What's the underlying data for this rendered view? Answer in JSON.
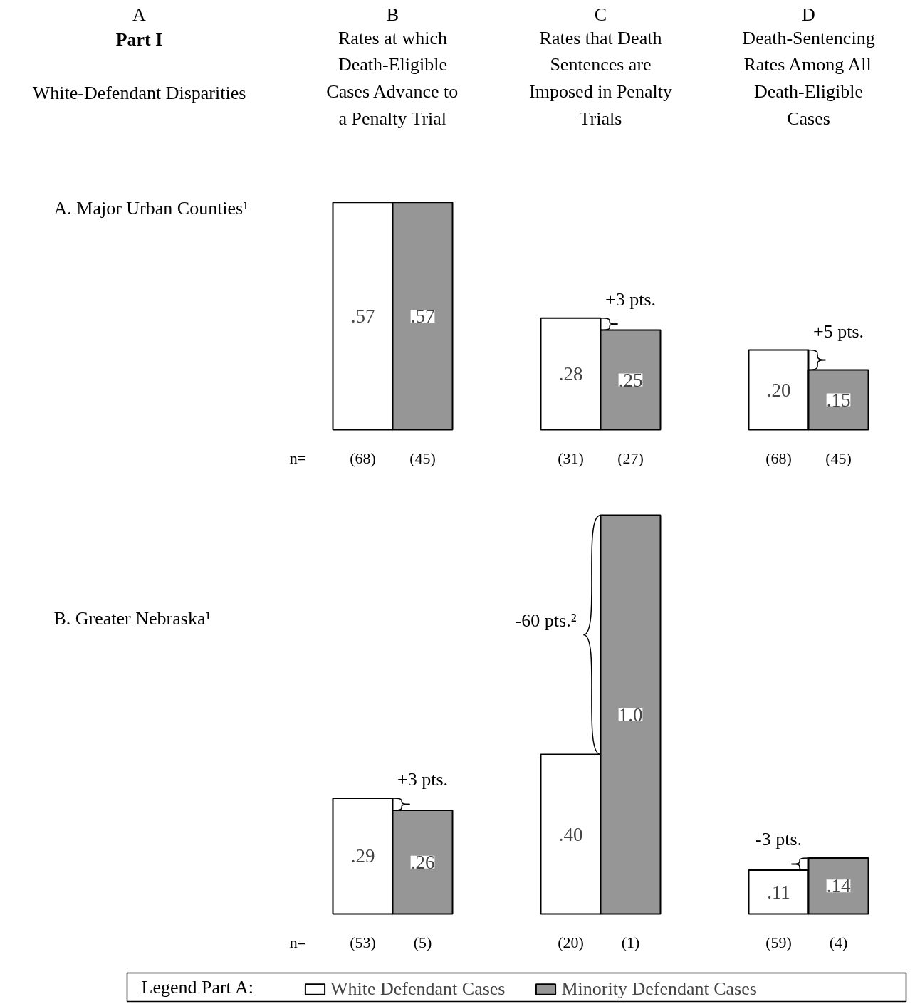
{
  "chart_data": [
    {
      "type": "bar",
      "tick_labels": "x",
      "legend": false,
      "categories": [
        "Rates at which\nDeath-Eligible\nCases Advance to\na Penalty Trial",
        "Rates that Death\nSentences are\nImposed in Penalty\nTrials",
        "Death-Sentencing\nRates Among All\nDeath-Eligible\nCases"
      ],
      "series": [
        {
          "color": "#ffffff",
          "values": [
            0.57,
            0.28,
            0.2
          ],
          "value_labels": [
            ".57",
            ".28",
            ".20"
          ]
        },
        {
          "color": "#969696",
          "values": [
            0.57,
            0.25,
            0.15
          ],
          "value_labels": [
            ".57",
            ".25",
            ".15"
          ]
        }
      ],
      "annotations": [
        "A",
        "B",
        "C",
        "D",
        "Part I",
        "White-Defendant Disparities",
        "A.  Major Urban Counties¹",
        "n=",
        "(68)",
        "(45)",
        "(31)",
        "(27)",
        "(68)",
        "(45)",
        "+3 pts.",
        "+5 pts."
      ]
    },
    {
      "type": "bar",
      "legend": "bottom",
      "legend_title": "Legend Part A:",
      "categories": [
        null,
        null,
        null
      ],
      "series": [
        {
          "name": "White Defendant Cases",
          "color": "#ffffff",
          "values": [
            0.29,
            0.4,
            0.11
          ],
          "value_labels": [
            ".29",
            ".40",
            ".11"
          ]
        },
        {
          "name": "Minority Defendant Cases",
          "color": "#969696",
          "values": [
            0.26,
            1.0,
            0.14
          ],
          "value_labels": [
            ".26",
            "1.0",
            ".14"
          ]
        }
      ],
      "annotations": [
        "B.  Greater Nebraska¹",
        "n=",
        "(53)",
        "(5)",
        "(20)",
        "(1)",
        "(59)",
        "(4)",
        "+3 pts.",
        "-60 pts.²",
        "-3 pts."
      ]
    }
  ]
}
